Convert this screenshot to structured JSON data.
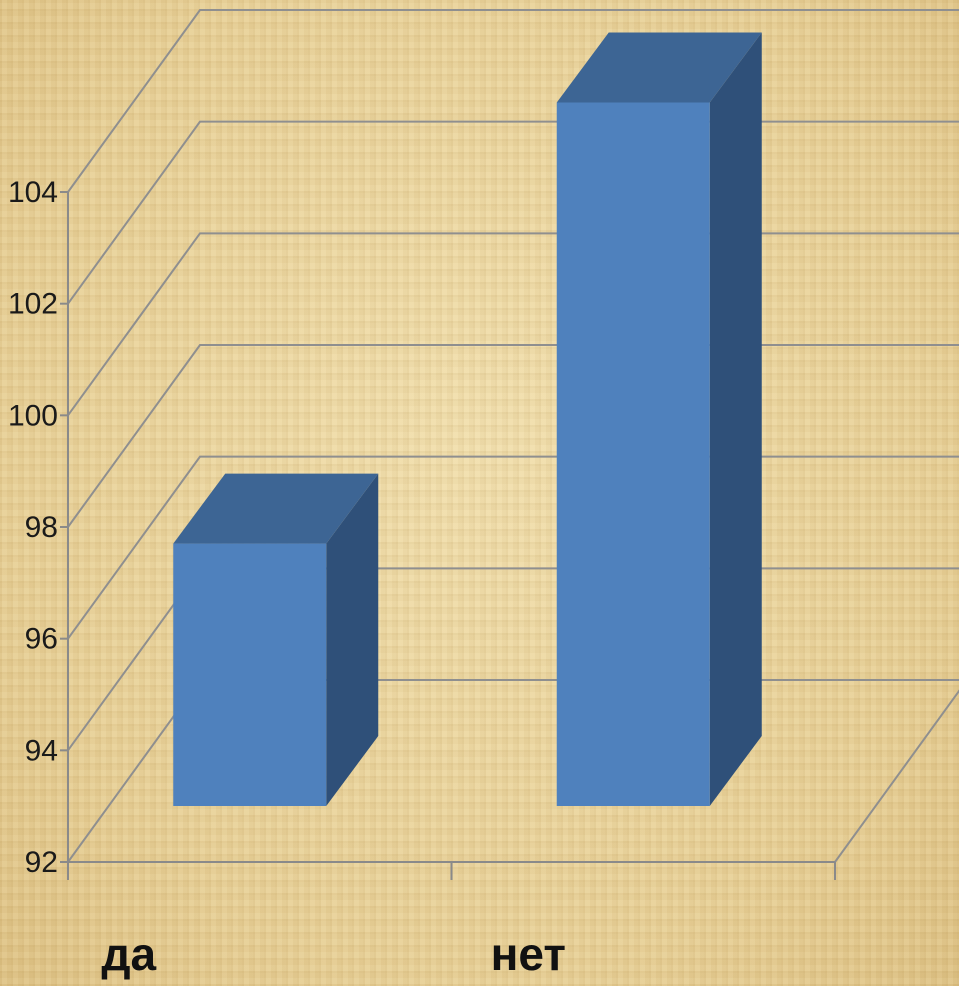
{
  "chart_data": {
    "type": "bar",
    "categories": [
      "да",
      "нет"
    ],
    "values": [
      96.7,
      104.6
    ],
    "ylim": [
      92,
      104
    ],
    "yticks": [
      92,
      94,
      96,
      98,
      100,
      102,
      104
    ],
    "title": "",
    "xlabel": "",
    "ylabel": "",
    "grid": true,
    "legend": "none",
    "style": "3d-column",
    "colors": {
      "bar_front": "#4f81bd",
      "bar_top": "#3d6594",
      "bar_side": "#2f5079",
      "gridline": "#8f8f8f",
      "axis": "#8a8a8a"
    }
  }
}
